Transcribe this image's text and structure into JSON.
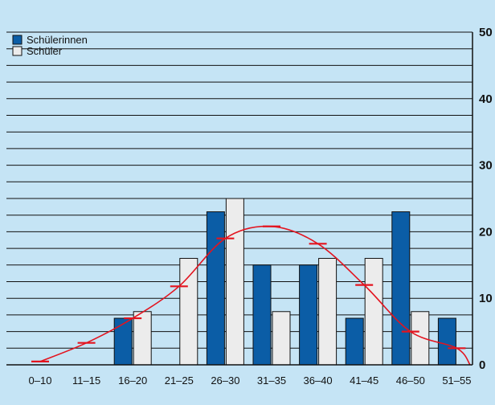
{
  "chart_data": {
    "type": "bar",
    "categories": [
      "0–10",
      "11–15",
      "16–20",
      "21–25",
      "26–30",
      "31–35",
      "36–40",
      "41–45",
      "46–50",
      "51–55"
    ],
    "series": [
      {
        "name": "Schülerinnen",
        "values": [
          0,
          0,
          7,
          0,
          23,
          15,
          15,
          7,
          23,
          7
        ],
        "color": "#0b5da6"
      },
      {
        "name": "Schüler",
        "values": [
          0,
          0,
          8,
          16,
          25,
          8,
          16,
          16,
          8,
          0
        ],
        "color": "#ececec"
      }
    ],
    "overlay_line": {
      "color": "#e3141f",
      "markers": [
        0.5,
        3.3,
        7,
        11.8,
        19,
        20.8,
        18.2,
        12,
        5,
        2.5
      ]
    },
    "yticks": [
      0,
      10,
      20,
      30,
      40,
      50
    ],
    "ylim": [
      0,
      50
    ],
    "ygrid_minor_step": 2.5,
    "legend_position": "top-left",
    "background": "#c5e4f5"
  }
}
